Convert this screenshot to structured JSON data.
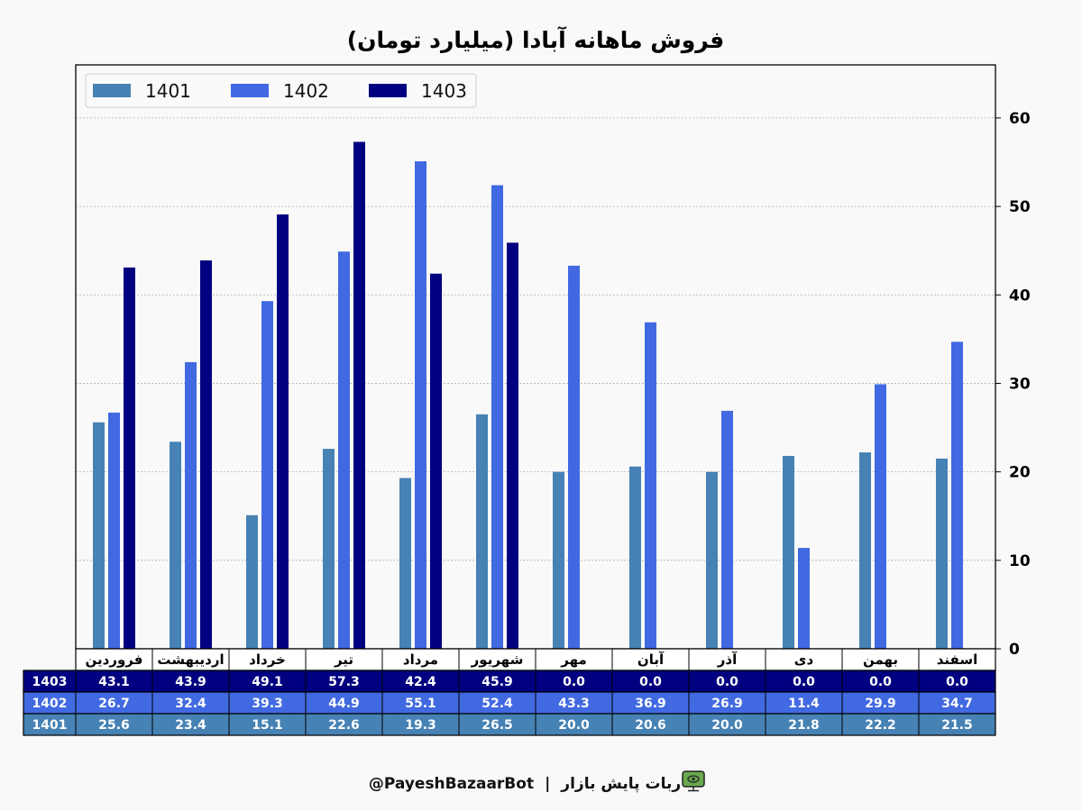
{
  "chart_data": {
    "type": "bar",
    "title": "فروش ماهانه آبادا (میلیارد تومان)",
    "categories": [
      "فروردین",
      "اردیبهشت",
      "خرداد",
      "تیر",
      "مرداد",
      "شهریور",
      "مهر",
      "آبان",
      "آذر",
      "دی",
      "بهمن",
      "اسفند"
    ],
    "series": [
      {
        "name": "1401",
        "color": "#4682b4",
        "values": [
          25.6,
          23.4,
          15.1,
          22.6,
          19.3,
          26.5,
          20.0,
          20.6,
          20.0,
          21.8,
          22.2,
          21.5
        ]
      },
      {
        "name": "1402",
        "color": "#4169e1",
        "values": [
          26.7,
          32.4,
          39.3,
          44.9,
          55.1,
          52.4,
          43.3,
          36.9,
          26.9,
          11.4,
          29.9,
          34.7
        ]
      },
      {
        "name": "1403",
        "color": "#000080",
        "values": [
          43.1,
          43.9,
          49.1,
          57.3,
          42.4,
          45.9,
          0.0,
          0.0,
          0.0,
          0.0,
          0.0,
          0.0
        ]
      }
    ],
    "table_rows": [
      {
        "label": "1403",
        "color": "#000080",
        "values": [
          "43.1",
          "43.9",
          "49.1",
          "57.3",
          "42.4",
          "45.9",
          "0.0",
          "0.0",
          "0.0",
          "0.0",
          "0.0",
          "0.0"
        ]
      },
      {
        "label": "1402",
        "color": "#4169e1",
        "values": [
          "26.7",
          "32.4",
          "39.3",
          "44.9",
          "55.1",
          "52.4",
          "43.3",
          "36.9",
          "26.9",
          "11.4",
          "29.9",
          "34.7"
        ]
      },
      {
        "label": "1401",
        "color": "#4682b4",
        "values": [
          "25.6",
          "23.4",
          "15.1",
          "22.6",
          "19.3",
          "26.5",
          "20.0",
          "20.6",
          "20.0",
          "21.8",
          "22.2",
          "21.5"
        ]
      }
    ],
    "ylim": [
      0,
      66
    ],
    "yticks": [
      0,
      10,
      20,
      30,
      40,
      50,
      60
    ],
    "y_axis_side": "right",
    "grid": true,
    "legend_position": "top-left",
    "xlabel": "",
    "ylabel": ""
  },
  "footer": {
    "handle": "@PayeshBazaarBot",
    "separator": "|",
    "bot_name": "ربات پایش بازار"
  }
}
